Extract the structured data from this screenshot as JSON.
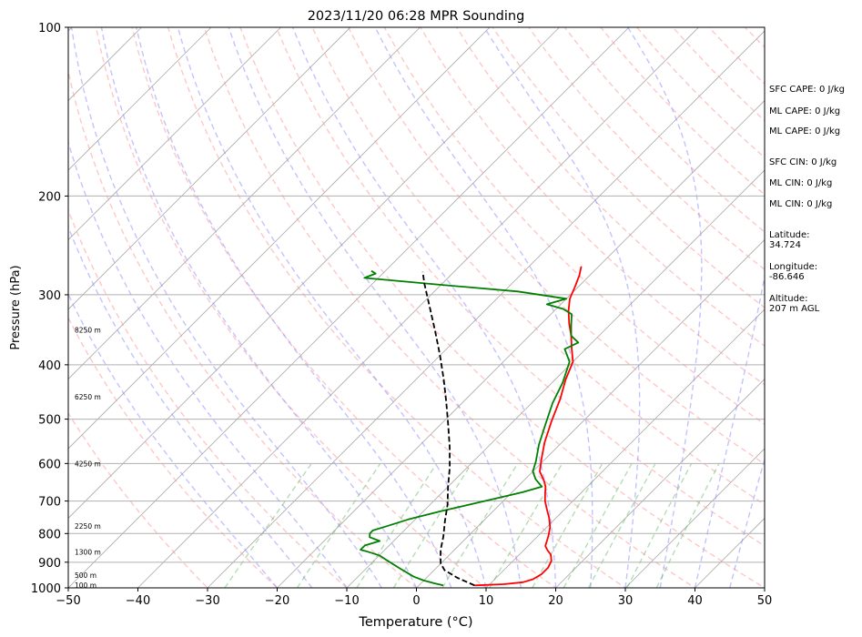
{
  "chart_data": {
    "type": "line",
    "title": "2023/11/20 06:28 MPR Sounding",
    "xlabel": "Temperature (°C)",
    "ylabel": "Pressure (hPa)",
    "xlim": [
      -50,
      50
    ],
    "ylim": [
      1000,
      100
    ],
    "y_scale": "log",
    "x_ticks": [
      "−50",
      "−40",
      "−30",
      "−20",
      "−10",
      "0",
      "10",
      "20",
      "30",
      "40",
      "50"
    ],
    "y_ticks": [
      "100",
      "200",
      "300",
      "400",
      "500",
      "600",
      "700",
      "800",
      "900",
      "1000"
    ],
    "grid": true,
    "height_labels": [
      {
        "label": "100 m",
        "p": 993
      },
      {
        "label": "500 m",
        "p": 952
      },
      {
        "label": "1300 m",
        "p": 866
      },
      {
        "label": "2250 m",
        "p": 778
      },
      {
        "label": "4250 m",
        "p": 603
      },
      {
        "label": "6250 m",
        "p": 458
      },
      {
        "label": "8250 m",
        "p": 348
      }
    ],
    "series": [
      {
        "role": "temperature",
        "color": "#ff0000",
        "points": [
          [
            8,
            990
          ],
          [
            12,
            985
          ],
          [
            14.5,
            977
          ],
          [
            15.5,
            965
          ],
          [
            16,
            945
          ],
          [
            16,
            920
          ],
          [
            15.5,
            895
          ],
          [
            14.5,
            872
          ],
          [
            13.5,
            858
          ],
          [
            12.5,
            842
          ],
          [
            12,
            825
          ],
          [
            11.5,
            808
          ],
          [
            10.5,
            780
          ],
          [
            9,
            750
          ],
          [
            7.5,
            725
          ],
          [
            6,
            700
          ],
          [
            5,
            680
          ],
          [
            4,
            660
          ],
          [
            3,
            645
          ],
          [
            1,
            620
          ],
          [
            -0.5,
            590
          ],
          [
            -2.5,
            550
          ],
          [
            -4.5,
            505
          ],
          [
            -6.5,
            460
          ],
          [
            -8.5,
            425
          ],
          [
            -10,
            395
          ],
          [
            -12,
            375
          ],
          [
            -14,
            355
          ],
          [
            -16,
            338
          ],
          [
            -18,
            320
          ],
          [
            -19.5,
            305
          ],
          [
            -20.5,
            290
          ],
          [
            -21.5,
            277
          ],
          [
            -22.5,
            267
          ]
        ]
      },
      {
        "role": "dewpoint",
        "color": "#008000",
        "points": [
          [
            3.5,
            990
          ],
          [
            2,
            982
          ],
          [
            0,
            970
          ],
          [
            -2,
            955
          ],
          [
            -5,
            925
          ],
          [
            -8,
            895
          ],
          [
            -10,
            875
          ],
          [
            -12.5,
            860
          ],
          [
            -13.5,
            855
          ],
          [
            -13.5,
            840
          ],
          [
            -12,
            825
          ],
          [
            -14,
            812
          ],
          [
            -14.5,
            800
          ],
          [
            -14.5,
            790
          ],
          [
            -13,
            775
          ],
          [
            -11,
            755
          ],
          [
            -7.5,
            730
          ],
          [
            -3.5,
            705
          ],
          [
            -1,
            690
          ],
          [
            1.5,
            675
          ],
          [
            3.5,
            660
          ],
          [
            3,
            655
          ],
          [
            1.5,
            640
          ],
          [
            0,
            620
          ],
          [
            -1,
            595
          ],
          [
            -3,
            555
          ],
          [
            -5,
            510
          ],
          [
            -7,
            468
          ],
          [
            -8.5,
            430
          ],
          [
            -10.5,
            395
          ],
          [
            -13,
            375
          ],
          [
            -12,
            365
          ],
          [
            -13,
            360
          ],
          [
            -14,
            355
          ],
          [
            -15.5,
            340
          ],
          [
            -17,
            325
          ],
          [
            -19,
            318
          ],
          [
            -22,
            312
          ],
          [
            -20,
            305
          ],
          [
            -28,
            296
          ],
          [
            -40,
            288
          ],
          [
            -52,
            280
          ],
          [
            -51,
            275
          ],
          [
            -52,
            272
          ]
        ]
      },
      {
        "role": "parcel",
        "color": "#000000",
        "points": [
          [
            8,
            990
          ],
          [
            4.5,
            960
          ],
          [
            1.5,
            930
          ],
          [
            0,
            905
          ],
          [
            -1,
            880
          ],
          [
            -2,
            855
          ],
          [
            -3.5,
            810
          ],
          [
            -5.5,
            760
          ],
          [
            -7.5,
            710
          ],
          [
            -10,
            660
          ],
          [
            -12.5,
            610
          ],
          [
            -15.5,
            560
          ],
          [
            -19,
            510
          ],
          [
            -22.5,
            465
          ],
          [
            -26,
            425
          ],
          [
            -30,
            385
          ],
          [
            -34,
            350
          ],
          [
            -38.5,
            315
          ],
          [
            -42.5,
            287
          ],
          [
            -44.5,
            273
          ]
        ]
      }
    ],
    "background_lines": {
      "dry_adiabat_color": "#ff9999",
      "moist_adiabat_color": "#8888ff",
      "mixing_ratio_color": "#44aa44",
      "isotherm_color": "#666666"
    }
  },
  "sidebar": {
    "sfc_cape": "SFC CAPE: 0 J/kg",
    "ml_cape_1": "ML CAPE: 0 J/kg",
    "ml_cape_2": "ML CAPE: 0 J/kg",
    "sfc_cin": "SFC CIN: 0 J/kg",
    "ml_cin_1": "ML CIN: 0 J/kg",
    "ml_cin_2": "ML CIN: 0 J/kg",
    "latitude_label": "Latitude:",
    "latitude_value": "34.724",
    "longitude_label": "Longitude:",
    "longitude_value": "-86.646",
    "altitude_label": "Altitude:",
    "altitude_value": "207 m AGL"
  }
}
